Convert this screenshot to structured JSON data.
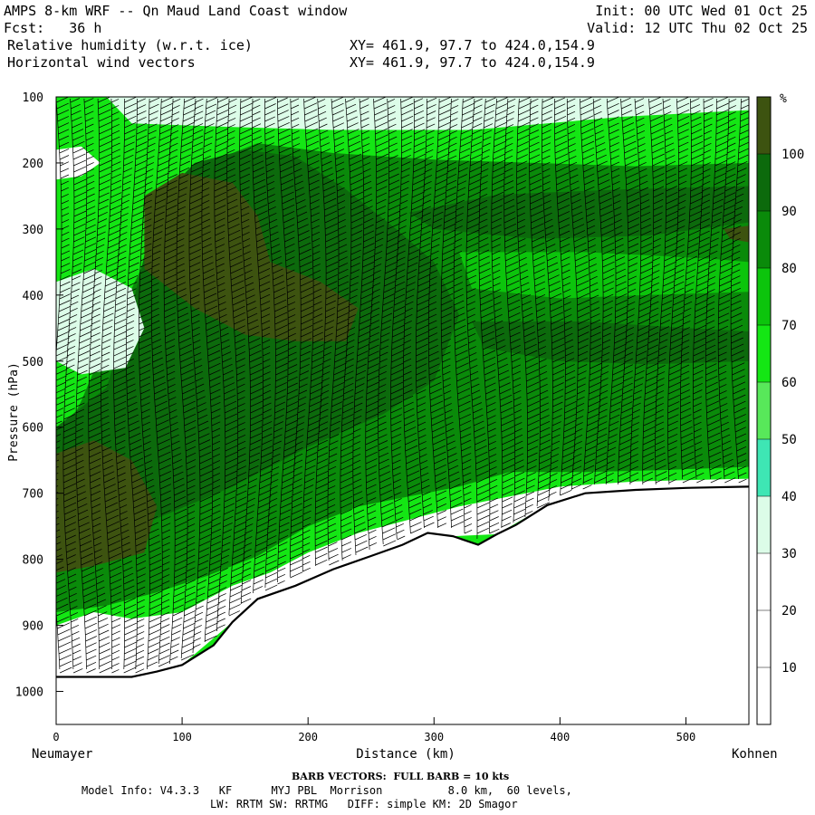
{
  "header": {
    "title": "AMPS 8-km WRF -- Qn Maud Land Coast window",
    "init": "Init: 00 UTC Wed 01 Oct 25",
    "fcst": "Fcst:   36 h",
    "valid": "Valid: 12 UTC Thu 02 Oct 25",
    "field1": "Relative humidity (w.r.t. ice)",
    "xy1": "XY= 461.9, 97.7 to 424.0,154.9",
    "field2": "Horizontal wind vectors",
    "xy2": "XY= 461.9, 97.7 to 424.0,154.9"
  },
  "footer": {
    "barb_note": "BARB VECTORS:  FULL BARB = 10 kts",
    "model_info_1": "Model Info: V4.3.3   KF      MYJ PBL  Morrison          8.0 km,  60 levels,",
    "model_info_2": "LW: RRTM SW: RRTMG   DIFF: simple KM: 2D Smagor"
  },
  "chart_data": {
    "type": "heatmap",
    "title": "Relative humidity (w.r.t. ice)",
    "overlay": "Horizontal wind vectors",
    "xlabel": "Distance (km)",
    "ylabel": "Pressure (hPa)",
    "xlim": [
      0,
      550
    ],
    "ylim": [
      1050,
      100
    ],
    "x_ticks": [
      0,
      100,
      200,
      300,
      400,
      500
    ],
    "y_ticks": [
      100,
      200,
      300,
      400,
      500,
      600,
      700,
      800,
      900,
      1000
    ],
    "x_endpoint_labels": {
      "left": "Neumayer",
      "right": "Kohnen"
    },
    "colorbar": {
      "unit": "%",
      "levels": [
        10,
        20,
        30,
        40,
        50,
        60,
        70,
        80,
        90,
        100
      ],
      "colors": [
        "#ffffff",
        "#ffffff",
        "#ffffff",
        "#dcfce8",
        "#3ee6b4",
        "#58e85a",
        "#14e614",
        "#0cc40c",
        "#0a8a0a",
        "#0c6a0c",
        "#3d5310"
      ]
    },
    "terrain": [
      [
        0,
        978
      ],
      [
        60,
        978
      ],
      [
        80,
        970
      ],
      [
        100,
        960
      ],
      [
        125,
        930
      ],
      [
        140,
        895
      ],
      [
        160,
        860
      ],
      [
        190,
        840
      ],
      [
        220,
        815
      ],
      [
        250,
        795
      ],
      [
        275,
        778
      ],
      [
        295,
        760
      ],
      [
        315,
        765
      ],
      [
        335,
        778
      ],
      [
        350,
        762
      ],
      [
        365,
        748
      ],
      [
        390,
        718
      ],
      [
        420,
        700
      ],
      [
        460,
        695
      ],
      [
        500,
        692
      ],
      [
        550,
        690
      ]
    ],
    "rh_regions": [
      {
        "level": 80,
        "polygon": [
          [
            0,
            640
          ],
          [
            20,
            560
          ],
          [
            40,
            470
          ],
          [
            70,
            350
          ],
          [
            90,
            280
          ],
          [
            120,
            200
          ],
          [
            160,
            170
          ],
          [
            220,
            185
          ],
          [
            300,
            195
          ],
          [
            380,
            200
          ],
          [
            460,
            205
          ],
          [
            550,
            200
          ],
          [
            550,
            660
          ],
          [
            480,
            665
          ],
          [
            420,
            668
          ],
          [
            360,
            668
          ],
          [
            320,
            690
          ],
          [
            280,
            705
          ],
          [
            240,
            720
          ],
          [
            200,
            750
          ],
          [
            160,
            795
          ],
          [
            120,
            825
          ],
          [
            80,
            850
          ],
          [
            40,
            870
          ],
          [
            0,
            880
          ]
        ]
      },
      {
        "level": 90,
        "polygon": [
          [
            0,
            600
          ],
          [
            40,
            540
          ],
          [
            60,
            420
          ],
          [
            80,
            260
          ],
          [
            110,
            200
          ],
          [
            150,
            180
          ],
          [
            190,
            190
          ],
          [
            230,
            240
          ],
          [
            270,
            300
          ],
          [
            300,
            350
          ],
          [
            320,
            430
          ],
          [
            300,
            530
          ],
          [
            260,
            580
          ],
          [
            200,
            630
          ],
          [
            140,
            690
          ],
          [
            90,
            730
          ],
          [
            40,
            770
          ],
          [
            0,
            800
          ]
        ]
      },
      {
        "level": 90,
        "polygon": [
          [
            280,
            275
          ],
          [
            350,
            248
          ],
          [
            450,
            240
          ],
          [
            550,
            235
          ],
          [
            550,
            290
          ],
          [
            470,
            310
          ],
          [
            380,
            315
          ],
          [
            300,
            300
          ]
        ]
      },
      {
        "level": 90,
        "polygon": [
          [
            330,
            440
          ],
          [
            420,
            440
          ],
          [
            500,
            450
          ],
          [
            550,
            455
          ],
          [
            550,
            500
          ],
          [
            470,
            505
          ],
          [
            400,
            500
          ],
          [
            340,
            480
          ]
        ]
      },
      {
        "level": 100,
        "polygon": [
          [
            70,
            360
          ],
          [
            70,
            250
          ],
          [
            100,
            215
          ],
          [
            140,
            230
          ],
          [
            160,
            280
          ],
          [
            170,
            350
          ],
          [
            210,
            380
          ],
          [
            240,
            420
          ],
          [
            230,
            470
          ],
          [
            190,
            470
          ],
          [
            150,
            460
          ],
          [
            110,
            420
          ]
        ]
      },
      {
        "level": 100,
        "polygon": [
          [
            0,
            640
          ],
          [
            30,
            620
          ],
          [
            60,
            650
          ],
          [
            80,
            720
          ],
          [
            70,
            790
          ],
          [
            30,
            810
          ],
          [
            0,
            820
          ]
        ]
      },
      {
        "level": 100,
        "polygon": [
          [
            530,
            300
          ],
          [
            550,
            295
          ],
          [
            550,
            320
          ],
          [
            535,
            315
          ]
        ]
      },
      {
        "level": 30,
        "polygon": [
          [
            0,
            380
          ],
          [
            30,
            360
          ],
          [
            60,
            390
          ],
          [
            70,
            450
          ],
          [
            55,
            510
          ],
          [
            20,
            520
          ],
          [
            0,
            500
          ]
        ]
      },
      {
        "level": 70,
        "polygon": [
          [
            320,
            335
          ],
          [
            420,
            335
          ],
          [
            520,
            345
          ],
          [
            550,
            350
          ],
          [
            550,
            395
          ],
          [
            470,
            400
          ],
          [
            400,
            405
          ],
          [
            330,
            390
          ]
        ]
      },
      {
        "level": 20,
        "polygon": [
          [
            0,
            180
          ],
          [
            20,
            175
          ],
          [
            35,
            200
          ],
          [
            20,
            220
          ],
          [
            0,
            225
          ]
        ]
      },
      {
        "level": 30,
        "polygon": [
          [
            40,
            100
          ],
          [
            550,
            100
          ],
          [
            550,
            120
          ],
          [
            450,
            130
          ],
          [
            330,
            150
          ],
          [
            220,
            150
          ],
          [
            130,
            145
          ],
          [
            60,
            140
          ]
        ]
      },
      {
        "level": 20,
        "polygon": [
          [
            0,
            990
          ],
          [
            0,
            900
          ],
          [
            30,
            880
          ],
          [
            60,
            890
          ],
          [
            100,
            880
          ],
          [
            120,
            860
          ],
          [
            140,
            840
          ],
          [
            170,
            820
          ],
          [
            200,
            790
          ],
          [
            240,
            760
          ],
          [
            280,
            740
          ],
          [
            320,
            720
          ],
          [
            360,
            705
          ],
          [
            400,
            690
          ],
          [
            460,
            682
          ],
          [
            550,
            678
          ],
          [
            550,
            700
          ],
          [
            420,
            700
          ],
          [
            390,
            718
          ],
          [
            350,
            762
          ],
          [
            315,
            765
          ],
          [
            250,
            795
          ],
          [
            190,
            840
          ],
          [
            140,
            895
          ],
          [
            100,
            960
          ],
          [
            60,
            978
          ],
          [
            0,
            978
          ]
        ]
      }
    ],
    "wind_columns_km": [
      0,
      10,
      20,
      30,
      40,
      50,
      60,
      70,
      80,
      90,
      100,
      110,
      120,
      130,
      140,
      150,
      160,
      170,
      180,
      190,
      200,
      210,
      220,
      230,
      240,
      250,
      260,
      270,
      280,
      290,
      300,
      310,
      320,
      330,
      340,
      350,
      360,
      370,
      380,
      390,
      400,
      410,
      420,
      430,
      440,
      450,
      460,
      470,
      480,
      490,
      500,
      510,
      520,
      530,
      540
    ]
  }
}
